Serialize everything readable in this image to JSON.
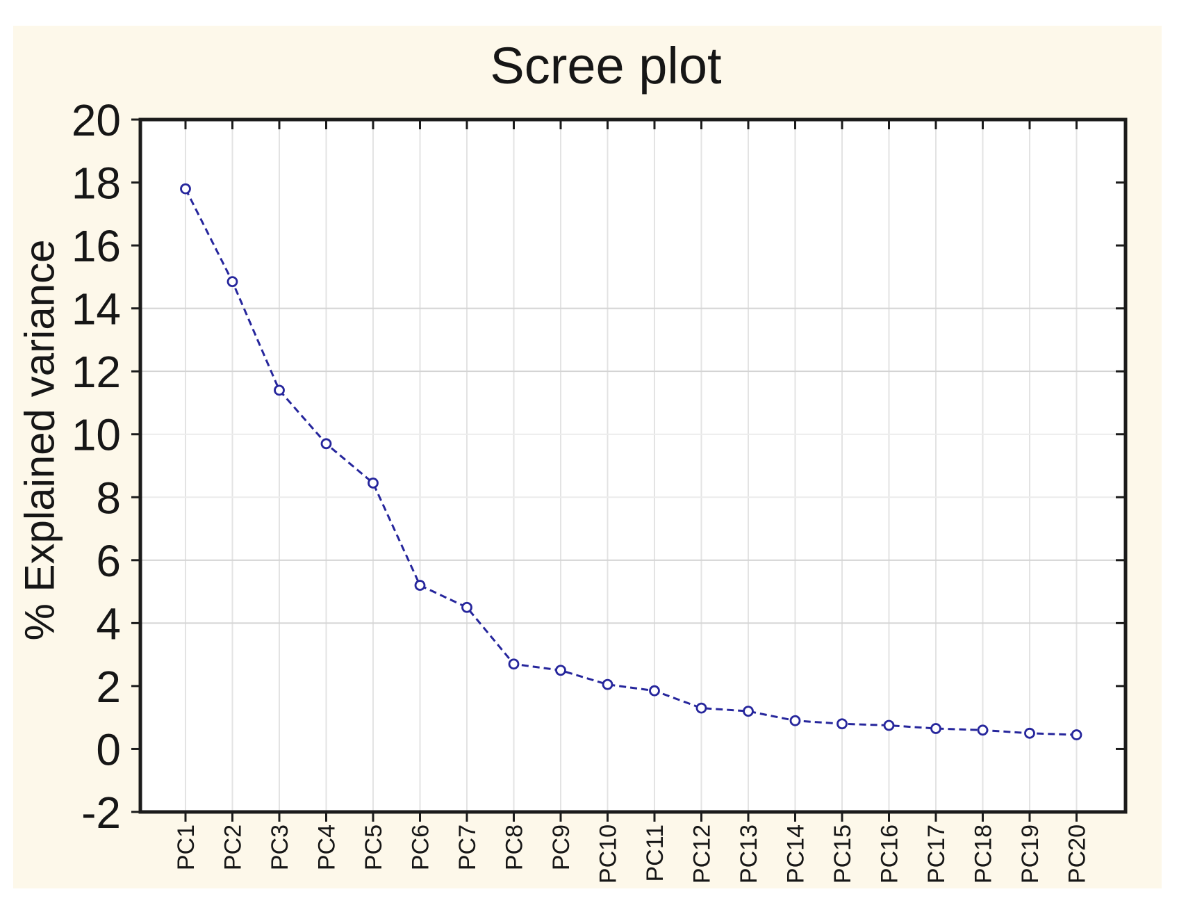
{
  "title": "Scree plot",
  "y_axis": {
    "label": "% Explained variance",
    "ticks": [
      20,
      18,
      16,
      14,
      12,
      10,
      8,
      6,
      4,
      2,
      0,
      -2
    ],
    "min": -2,
    "max": 20
  },
  "x_axis": {
    "labels": [
      "PC1",
      "PC2",
      "PC3",
      "PC4",
      "PC5",
      "PC6",
      "PC7",
      "PC8",
      "PC9",
      "PC10",
      "PC11",
      "PC12",
      "PC13",
      "PC14",
      "PC15",
      "PC16",
      "PC17",
      "PC18",
      "PC19",
      "PC20"
    ]
  },
  "chart_data": {
    "type": "line",
    "title": "Scree plot",
    "xlabel": "",
    "ylabel": "% Explained variance",
    "categories": [
      "PC1",
      "PC2",
      "PC3",
      "PC4",
      "PC5",
      "PC6",
      "PC7",
      "PC8",
      "PC9",
      "PC10",
      "PC11",
      "PC12",
      "PC13",
      "PC14",
      "PC15",
      "PC16",
      "PC17",
      "PC18",
      "PC19",
      "PC20"
    ],
    "values": [
      17.8,
      14.85,
      11.4,
      9.7,
      8.45,
      5.2,
      4.5,
      2.7,
      2.5,
      2.05,
      1.85,
      1.3,
      1.2,
      0.9,
      0.8,
      0.75,
      0.65,
      0.6,
      0.5,
      0.45
    ],
    "ylim": [
      -2,
      20
    ],
    "y_tick_step": 2,
    "grid": true,
    "grid_h_strong_values": [
      14,
      12,
      6,
      4
    ],
    "grid_h_faint_values": [
      10,
      8
    ],
    "legend_position": "none",
    "line_style": "dashed",
    "marker": "open-circle"
  },
  "colors": {
    "page_background": "#ffffff",
    "panel_background": "#fdf8ea",
    "plot_background": "#ffffff",
    "axis_frame": "#1b1b1b",
    "text": "#161616",
    "series_line": "#26269c",
    "marker_fill": "#ffffff",
    "grid_strong": "#d4d4d4",
    "grid_faint": "#ececec",
    "grid_vertical": "#e3e3e3"
  }
}
